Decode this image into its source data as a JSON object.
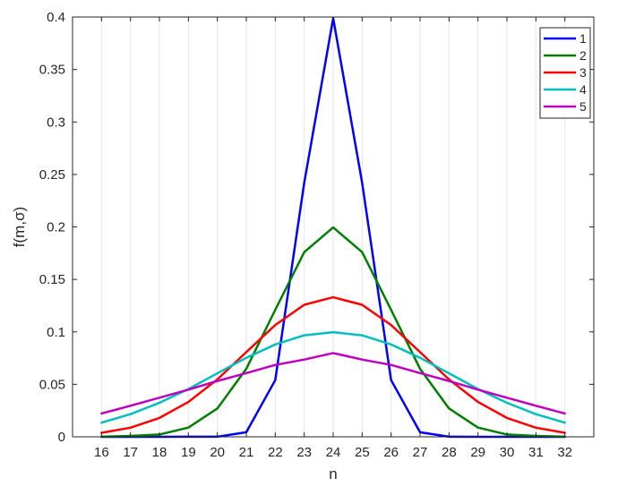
{
  "chart_data": {
    "type": "line",
    "title": "",
    "xlabel": "n",
    "ylabel": "f(m,σ)",
    "x": [
      16,
      17,
      18,
      19,
      20,
      21,
      22,
      23,
      24,
      25,
      26,
      27,
      28,
      29,
      30,
      31,
      32
    ],
    "xlim": [
      15,
      33
    ],
    "ylim": [
      0,
      0.4
    ],
    "xticks": [
      "16",
      "17",
      "18",
      "19",
      "20",
      "21",
      "22",
      "23",
      "24",
      "25",
      "26",
      "27",
      "28",
      "29",
      "30",
      "31",
      "32"
    ],
    "yticks": [
      "0",
      "0.05",
      "0.1",
      "0.15",
      "0.2",
      "0.25",
      "0.3",
      "0.35",
      "0.4"
    ],
    "yticks_values": [
      0,
      0.05,
      0.1,
      0.15,
      0.2,
      0.25,
      0.3,
      0.35,
      0.4
    ],
    "grid": "vertical",
    "legend_position": "top-right",
    "series": [
      {
        "name": "1",
        "color": "#0000ff",
        "values": [
          0.0,
          0.0,
          0.0,
          0.0001,
          0.0001,
          0.0044,
          0.054,
          0.242,
          0.3989,
          0.242,
          0.054,
          0.0044,
          0.0001,
          0.0,
          0.0,
          0.0,
          0.0
        ]
      },
      {
        "name": "2",
        "color": "#008000",
        "values": [
          0.0001,
          0.0009,
          0.0022,
          0.0088,
          0.027,
          0.0648,
          0.121,
          0.176,
          0.1995,
          0.176,
          0.121,
          0.0648,
          0.027,
          0.0088,
          0.0022,
          0.0009,
          0.0001
        ]
      },
      {
        "name": "3",
        "color": "#ff0000",
        "values": [
          0.0038,
          0.0087,
          0.018,
          0.0332,
          0.0547,
          0.0807,
          0.1065,
          0.1258,
          0.133,
          0.1258,
          0.1065,
          0.0807,
          0.0547,
          0.0332,
          0.018,
          0.0087,
          0.0038
        ]
      },
      {
        "name": "4",
        "color": "#00bfbf",
        "values": [
          0.0135,
          0.0216,
          0.0324,
          0.0455,
          0.0605,
          0.0753,
          0.088,
          0.0967,
          0.0997,
          0.0967,
          0.088,
          0.0753,
          0.0605,
          0.0455,
          0.0324,
          0.0216,
          0.0135
        ]
      },
      {
        "name": "5",
        "color": "#bf00bf",
        "values": [
          0.0222,
          0.0296,
          0.0373,
          0.0449,
          0.0532,
          0.0607,
          0.0685,
          0.0736,
          0.0798,
          0.0736,
          0.0685,
          0.0607,
          0.0532,
          0.0449,
          0.0373,
          0.0296,
          0.0222
        ]
      }
    ]
  }
}
